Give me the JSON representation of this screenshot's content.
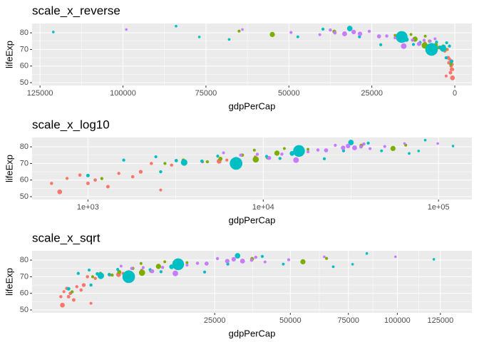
{
  "chart_data": [
    {
      "type": "scatter",
      "title": "scale_x_reverse",
      "xlabel": "gdpPerCap",
      "ylabel": "lifeExp",
      "xscale": "reverse",
      "xlim": [
        -5150,
        127400
      ],
      "xticks": [
        0,
        25000,
        50000,
        75000,
        100000,
        125000
      ],
      "ylim": [
        48.3,
        85.6
      ],
      "yticks": [
        50,
        60,
        70,
        80
      ],
      "grid": true,
      "series": [
        {
          "color": "#F8766D",
          "x": [
            690,
            620,
            760,
            900,
            1100,
            1300,
            1500,
            1800,
            2000,
            2600,
            3000,
            4500,
            5600,
            6200,
            9000,
            12500,
            1000,
            2300
          ],
          "y": [
            52.9,
            58,
            61,
            63,
            60,
            56,
            64,
            62,
            65,
            54,
            69,
            71,
            71.3,
            72,
            74,
            73,
            58,
            70
          ],
          "size": [
            76,
            10,
            8,
            12,
            15,
            20,
            9,
            14,
            30,
            6,
            10,
            8,
            80,
            5,
            3,
            2,
            18,
            12
          ]
        },
        {
          "color": "#7CAE00",
          "x": [
            1200,
            2750,
            3500,
            4800,
            5700,
            7000,
            7600,
            8900,
            9065,
            10600,
            11977,
            13200,
            18000,
            36300,
            55000,
            65000
          ],
          "y": [
            60.9,
            70,
            72,
            71,
            72.8,
            73,
            75,
            78,
            72.4,
            73.3,
            76.2,
            79,
            78.5,
            80.7,
            79,
            81
          ],
          "size": [
            9,
            7,
            12,
            10,
            40,
            6,
            15,
            4,
            190,
            12,
            108,
            4,
            3,
            33,
            100,
            5
          ]
        },
        {
          "color": "#00BFC4",
          "x": [
            1000,
            1600,
            2440,
            2600,
            3190,
            3540,
            4470,
            5500,
            7000,
            10461,
            12451,
            14600,
            16000,
            22316,
            28718,
            31656,
            39724,
            47306,
            68000,
            77000,
            84000,
            121000
          ],
          "y": [
            62.7,
            72,
            74,
            65,
            71.7,
            70.6,
            71.4,
            74.4,
            70,
            74.2,
            73,
            76,
            77.5,
            72.8,
            77.6,
            82.6,
            82.2,
            77.6,
            76,
            77.5,
            84,
            80.5
          ],
          "size": [
            20,
            8,
            5,
            10,
            15,
            223,
            12,
            6,
            1318,
            8,
            6,
            80,
            1110,
            5,
            7,
            127,
            7,
            3,
            2,
            1,
            1,
            1
          ]
        },
        {
          "color": "#C77CFF",
          "x": [
            5937,
            7446,
            9253,
            10808,
            12779,
            15390,
            18008,
            20509,
            22833,
            25768,
            28569,
            30470,
            33207,
            36126,
            37506,
            40676,
            49357,
            64000,
            99000
          ],
          "y": [
            76.4,
            75,
            75.5,
            73.3,
            75.6,
            72,
            77,
            78.1,
            77.9,
            80.9,
            79.4,
            80.5,
            79.4,
            80,
            81.7,
            78.9,
            80.2,
            82,
            82
          ],
          "size": [
            4,
            10,
            7,
            38,
            10,
            140,
            5,
            10,
            40,
            8,
            58,
            60,
            82,
            16,
            9,
            4,
            5,
            1,
            1
          ]
        }
      ]
    },
    {
      "type": "scatter",
      "title": "scale_x_log10",
      "xlabel": "gdpPerCap",
      "ylabel": "lifeExp",
      "xscale": "log10",
      "xlim": [
        480,
        155000
      ],
      "xticks": [
        {
          "value": 1000,
          "label": "1e+03"
        },
        {
          "value": 10000,
          "label": "1e+04"
        },
        {
          "value": 100000,
          "label": "1e+05"
        }
      ],
      "ylim": [
        48.3,
        85.6
      ],
      "yticks": [
        50,
        60,
        70,
        80
      ],
      "grid": true,
      "series": [
        {
          "color": "#F8766D",
          "x": [
            690,
            620,
            760,
            900,
            1100,
            1300,
            1500,
            1800,
            2000,
            2600,
            3000,
            4500,
            5600,
            6200,
            9000,
            12500,
            1000,
            2300
          ],
          "y": [
            52.9,
            58,
            61,
            63,
            60,
            56,
            64,
            62,
            65,
            54,
            69,
            71,
            71.3,
            72,
            74,
            73,
            58,
            70
          ],
          "size": [
            76,
            10,
            8,
            12,
            15,
            20,
            9,
            14,
            30,
            6,
            10,
            8,
            80,
            5,
            3,
            2,
            18,
            12
          ]
        },
        {
          "color": "#7CAE00",
          "x": [
            1200,
            2750,
            3500,
            4800,
            5700,
            7000,
            7600,
            8900,
            9065,
            10600,
            11977,
            13200,
            18000,
            36300,
            55000,
            65000
          ],
          "y": [
            60.9,
            70,
            72,
            71,
            72.8,
            73,
            75,
            78,
            72.4,
            73.3,
            76.2,
            79,
            78.5,
            80.7,
            79,
            81
          ],
          "size": [
            9,
            7,
            12,
            10,
            40,
            6,
            15,
            4,
            190,
            12,
            108,
            4,
            3,
            33,
            100,
            5
          ]
        },
        {
          "color": "#00BFC4",
          "x": [
            1000,
            1600,
            2440,
            2600,
            3190,
            3540,
            4470,
            5500,
            7000,
            10461,
            12451,
            14600,
            16000,
            22316,
            28718,
            31656,
            39724,
            47306,
            68000,
            77000,
            84000,
            121000
          ],
          "y": [
            62.7,
            72,
            74,
            65,
            71.7,
            70.6,
            71.4,
            74.4,
            70,
            74.2,
            73,
            76,
            77.5,
            72.8,
            77.6,
            82.6,
            82.2,
            77.6,
            76,
            77.5,
            84,
            80.5
          ],
          "size": [
            20,
            8,
            5,
            10,
            15,
            223,
            12,
            6,
            1318,
            8,
            6,
            80,
            1110,
            5,
            7,
            127,
            7,
            3,
            2,
            1,
            1,
            1
          ]
        },
        {
          "color": "#C77CFF",
          "x": [
            5937,
            7446,
            9253,
            10808,
            12779,
            15390,
            18008,
            20509,
            22833,
            25768,
            28569,
            30470,
            33207,
            36126,
            37506,
            40676,
            49357,
            64000,
            99000
          ],
          "y": [
            76.4,
            75,
            75.5,
            73.3,
            75.6,
            72,
            77,
            78.1,
            77.9,
            80.9,
            79.4,
            80.5,
            79.4,
            80,
            81.7,
            78.9,
            80.2,
            82,
            82
          ],
          "size": [
            4,
            10,
            7,
            38,
            10,
            140,
            5,
            10,
            40,
            8,
            58,
            60,
            82,
            16,
            9,
            4,
            5,
            1,
            1
          ]
        }
      ]
    },
    {
      "type": "scatter",
      "title": "scale_x_sqrt",
      "xlabel": "gdpPerCap",
      "ylabel": "lifeExp",
      "xscale": "sqrt",
      "xlim": [
        0,
        145000
      ],
      "xticks": [
        25000,
        50000,
        75000,
        100000,
        125000
      ],
      "ylim": [
        48.3,
        85.6
      ],
      "yticks": [
        50,
        60,
        70,
        80
      ],
      "grid": true,
      "series": [
        {
          "color": "#F8766D",
          "x": [
            690,
            620,
            760,
            900,
            1100,
            1300,
            1500,
            1800,
            2000,
            2600,
            3000,
            4500,
            5600,
            6200,
            9000,
            12500,
            1000,
            2300
          ],
          "y": [
            52.9,
            58,
            61,
            63,
            60,
            56,
            64,
            62,
            65,
            54,
            69,
            71,
            71.3,
            72,
            74,
            73,
            58,
            70
          ],
          "size": [
            76,
            10,
            8,
            12,
            15,
            20,
            9,
            14,
            30,
            6,
            10,
            8,
            80,
            5,
            3,
            2,
            18,
            12
          ]
        },
        {
          "color": "#7CAE00",
          "x": [
            1200,
            2750,
            3500,
            4800,
            5700,
            7000,
            7600,
            8900,
            9065,
            10600,
            11977,
            13200,
            18000,
            36300,
            55000,
            65000
          ],
          "y": [
            60.9,
            70,
            72,
            71,
            72.8,
            73,
            75,
            78,
            72.4,
            73.3,
            76.2,
            79,
            78.5,
            80.7,
            79,
            81
          ],
          "size": [
            9,
            7,
            12,
            10,
            40,
            6,
            15,
            4,
            190,
            12,
            108,
            4,
            3,
            33,
            100,
            5
          ]
        },
        {
          "color": "#00BFC4",
          "x": [
            1000,
            1600,
            2440,
            2600,
            3190,
            3540,
            4470,
            5500,
            7000,
            10461,
            12451,
            14600,
            16000,
            22316,
            28718,
            31656,
            39724,
            47306,
            68000,
            77000,
            84000,
            121000
          ],
          "y": [
            62.7,
            72,
            74,
            65,
            71.7,
            70.6,
            71.4,
            74.4,
            70,
            74.2,
            73,
            76,
            77.5,
            72.8,
            77.6,
            82.6,
            82.2,
            77.6,
            76,
            77.5,
            84,
            80.5
          ],
          "size": [
            20,
            8,
            5,
            10,
            15,
            223,
            12,
            6,
            1318,
            8,
            6,
            80,
            1110,
            5,
            7,
            127,
            7,
            3,
            2,
            1,
            1,
            1
          ]
        },
        {
          "color": "#C77CFF",
          "x": [
            5937,
            7446,
            9253,
            10808,
            12779,
            15390,
            18008,
            20509,
            22833,
            25768,
            28569,
            30470,
            33207,
            36126,
            37506,
            40676,
            49357,
            64000,
            99000
          ],
          "y": [
            76.4,
            75,
            75.5,
            73.3,
            75.6,
            72,
            77,
            78.1,
            77.9,
            80.9,
            79.4,
            80.5,
            79.4,
            80,
            81.7,
            78.9,
            80.2,
            82,
            82
          ],
          "size": [
            4,
            10,
            7,
            38,
            10,
            140,
            5,
            10,
            40,
            8,
            58,
            60,
            82,
            16,
            9,
            4,
            5,
            1,
            1
          ]
        }
      ]
    }
  ]
}
